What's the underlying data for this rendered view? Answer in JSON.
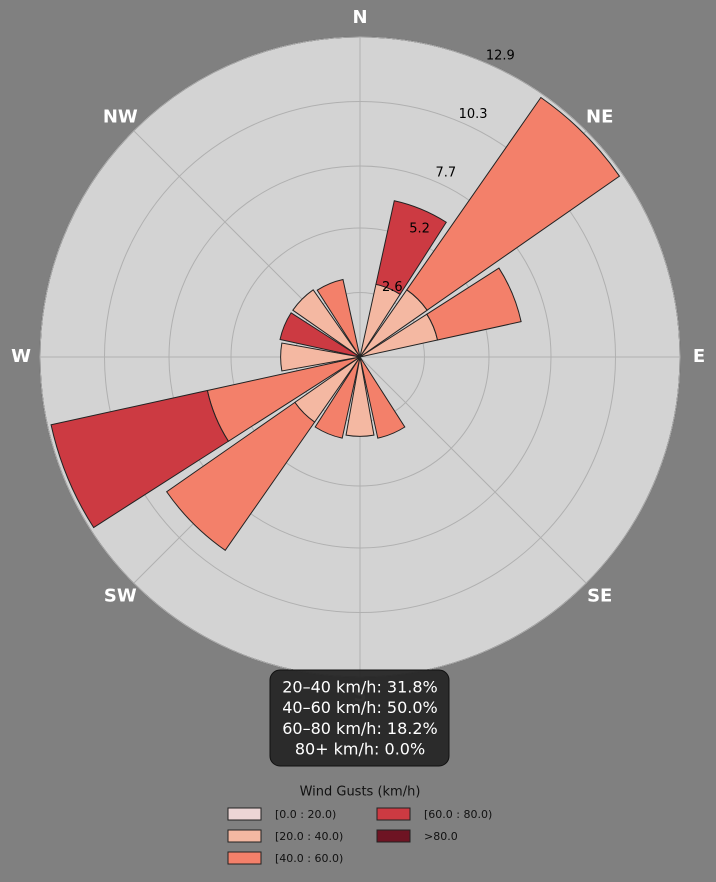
{
  "chart_data": {
    "type": "windrose",
    "categories": [
      "N",
      null,
      "NE",
      null,
      "E",
      null,
      "SE",
      null,
      "S",
      null,
      "SW",
      null,
      "W",
      null,
      "NW",
      null
    ],
    "series": [
      {
        "name": "[0.0 : 20.0)",
        "color": "#ecd6d6",
        "values": [
          0,
          0,
          0,
          0,
          0,
          0,
          0,
          0,
          0,
          0,
          0,
          0,
          0,
          0,
          0,
          0
        ]
      },
      {
        "name": "[20.0 : 40.0)",
        "color": "#f4b8a2",
        "values": [
          0,
          3.0,
          3.3,
          3.2,
          0,
          0,
          0,
          0,
          3.2,
          0,
          3.2,
          0,
          3.2,
          0,
          3.3,
          0
        ]
      },
      {
        "name": "[40.0 : 60.0)",
        "color": "#f3806a",
        "values": [
          0,
          0,
          9.45,
          3.45,
          0,
          0,
          0,
          3.35,
          0,
          3.35,
          6.3,
          6.3,
          0,
          0,
          0,
          3.2
        ]
      },
      {
        "name": "[60.0 : 80.0)",
        "color": "#cc3a42",
        "values": [
          0,
          3.45,
          0,
          0,
          0,
          0,
          0,
          0,
          0,
          0,
          0,
          6.45,
          0,
          3.3,
          0,
          0
        ]
      },
      {
        "name": ">80.0",
        "color": "#6e1423",
        "values": [
          0,
          0,
          0,
          0,
          0,
          0,
          0,
          0,
          0,
          0,
          0,
          0,
          0,
          0,
          0,
          0
        ]
      }
    ],
    "rlim": [
      0,
      12.9
    ],
    "rticks": [
      2.6,
      5.2,
      7.7,
      10.3,
      12.9
    ],
    "grid": true,
    "legend_title": "Wind Gusts (km/h)",
    "stats_box": [
      "20–40 km/h: 31.8%",
      "40–60 km/h: 50.0%",
      "60–80 km/h: 18.2%",
      "80+ km/h: 0.0%"
    ]
  }
}
